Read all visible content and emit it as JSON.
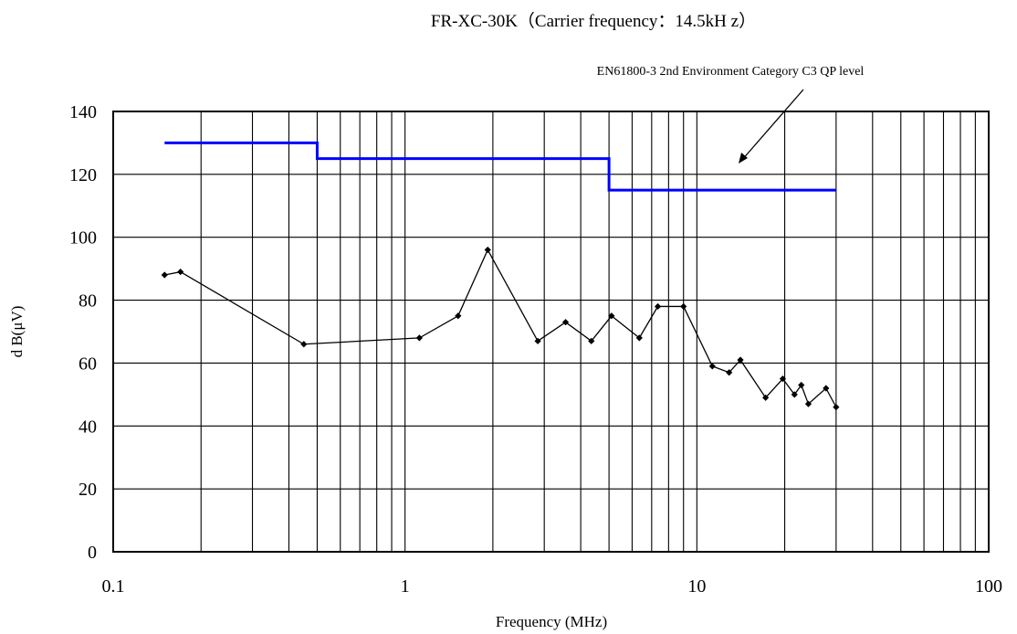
{
  "chart_data": {
    "type": "line",
    "title": "FR-XC-30K（Carrier frequency：14.5kH z）",
    "xlabel": "Frequency (MHz)",
    "ylabel": "d B(μV)",
    "xscale": "log",
    "xlim": [
      0.1,
      100
    ],
    "ylim": [
      0,
      140
    ],
    "xticks": [
      0.1,
      1,
      10,
      100
    ],
    "xtick_labels": [
      "0.1",
      "1",
      "10",
      "100"
    ],
    "yticks": [
      0,
      20,
      40,
      60,
      80,
      100,
      120,
      140
    ],
    "ytick_labels": [
      "0",
      "20",
      "40",
      "60",
      "80",
      "100",
      "120",
      "140"
    ],
    "grid": true,
    "annotation": "EN61800-3 2nd Environment Category C3 QP level",
    "colors": {
      "limit": "#0000ff",
      "measured": "#000000"
    },
    "series": [
      {
        "style": "step",
        "x": [
          0.15,
          0.5,
          0.5,
          5,
          5,
          30
        ],
        "y": [
          130,
          130,
          125,
          125,
          115,
          115
        ]
      },
      {
        "style": "line-markers",
        "x": [
          0.15,
          0.17,
          0.45,
          1.12,
          1.52,
          1.92,
          2.85,
          3.55,
          4.35,
          5.1,
          6.35,
          7.35,
          9.0,
          11.3,
          12.9,
          14.1,
          17.2,
          19.7,
          21.6,
          22.8,
          24.1,
          27.7,
          30.0
        ],
        "y": [
          88,
          89,
          66,
          68,
          75,
          96,
          67,
          73,
          67,
          75,
          68,
          78,
          78,
          59,
          57,
          61,
          49,
          55,
          50,
          53,
          47,
          52,
          46
        ]
      }
    ]
  }
}
